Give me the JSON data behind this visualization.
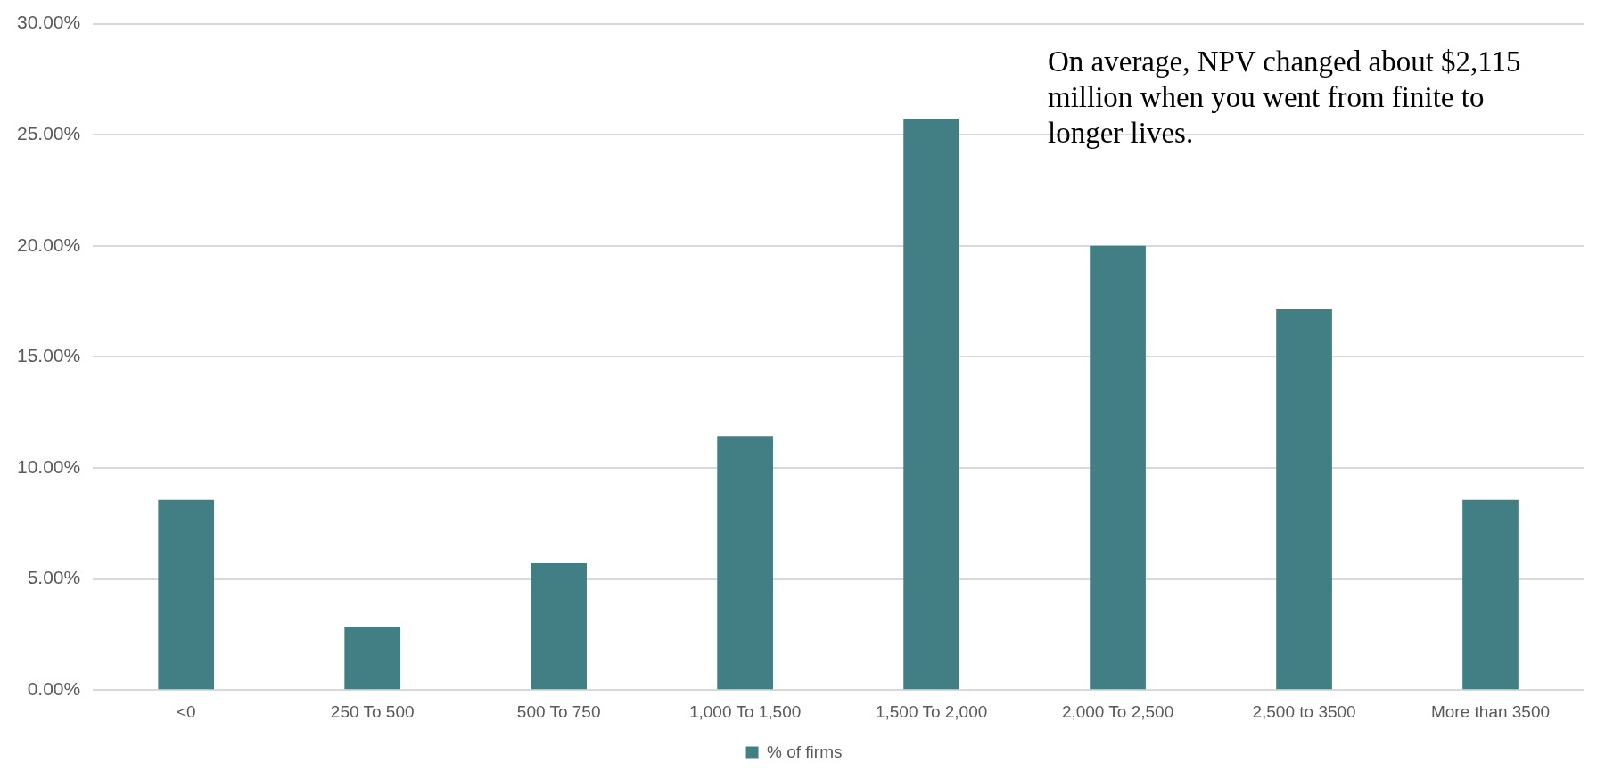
{
  "chart_data": {
    "type": "bar",
    "categories": [
      "<0",
      "250 To 500",
      "500 To 750",
      "1,000 To 1,500",
      "1,500 To 2,000",
      "2,000 To 2,500",
      "2,500 to 3500",
      "More than 3500"
    ],
    "series": [
      {
        "name": "% of firms",
        "color": "#427f85",
        "values": [
          8.57,
          2.86,
          5.71,
          11.43,
          25.71,
          20.0,
          17.14,
          8.57
        ]
      }
    ],
    "ylim": [
      0,
      30
    ],
    "yticks": [
      {
        "value": 0,
        "label": "0.00%"
      },
      {
        "value": 5,
        "label": "5.00%"
      },
      {
        "value": 10,
        "label": "10.00%"
      },
      {
        "value": 15,
        "label": "15.00%"
      },
      {
        "value": 20,
        "label": "20.00%"
      },
      {
        "value": 25,
        "label": "25.00%"
      },
      {
        "value": 30,
        "label": "30.00%"
      }
    ],
    "grid": "y",
    "legend": "bottom",
    "annotations": [
      "On average, NPV changed about $2,115 million when you went from finite to longer lives."
    ]
  }
}
